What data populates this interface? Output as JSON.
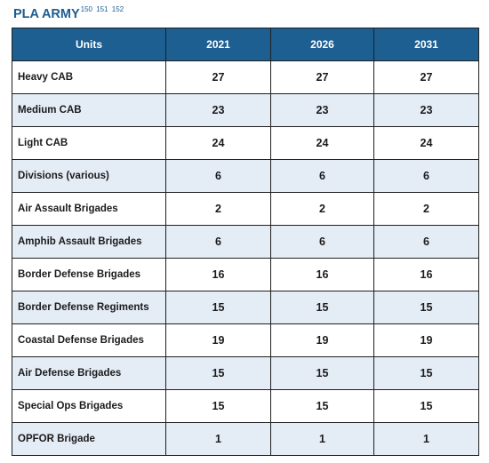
{
  "title": "PLA ARMY",
  "title_sup": "150 151 152",
  "colors": {
    "header_bg": "#1e5f91",
    "header_text": "#ffffff",
    "stripe": "#e4ecf6",
    "title": "#1a5d8f"
  },
  "table": {
    "headers": [
      "Units",
      "2021",
      "2026",
      "2031"
    ],
    "rows": [
      {
        "label": "Heavy CAB",
        "values": [
          "27",
          "27",
          "27"
        ]
      },
      {
        "label": "Medium CAB",
        "values": [
          "23",
          "23",
          "23"
        ]
      },
      {
        "label": "Light CAB",
        "values": [
          "24",
          "24",
          "24"
        ]
      },
      {
        "label": "Divisions (various)",
        "values": [
          "6",
          "6",
          "6"
        ]
      },
      {
        "label": "Air Assault Brigades",
        "values": [
          "2",
          "2",
          "2"
        ]
      },
      {
        "label": "Amphib Assault Brigades",
        "values": [
          "6",
          "6",
          "6"
        ]
      },
      {
        "label": "Border Defense Brigades",
        "values": [
          "16",
          "16",
          "16"
        ]
      },
      {
        "label": "Border Defense Regiments",
        "values": [
          "15",
          "15",
          "15"
        ]
      },
      {
        "label": "Coastal Defense Brigades",
        "values": [
          "19",
          "19",
          "19"
        ]
      },
      {
        "label": "Air Defense Brigades",
        "values": [
          "15",
          "15",
          "15"
        ]
      },
      {
        "label": "Special Ops Brigades",
        "values": [
          "15",
          "15",
          "15"
        ]
      },
      {
        "label": "OPFOR Brigade",
        "values": [
          "1",
          "1",
          "1"
        ]
      }
    ]
  }
}
